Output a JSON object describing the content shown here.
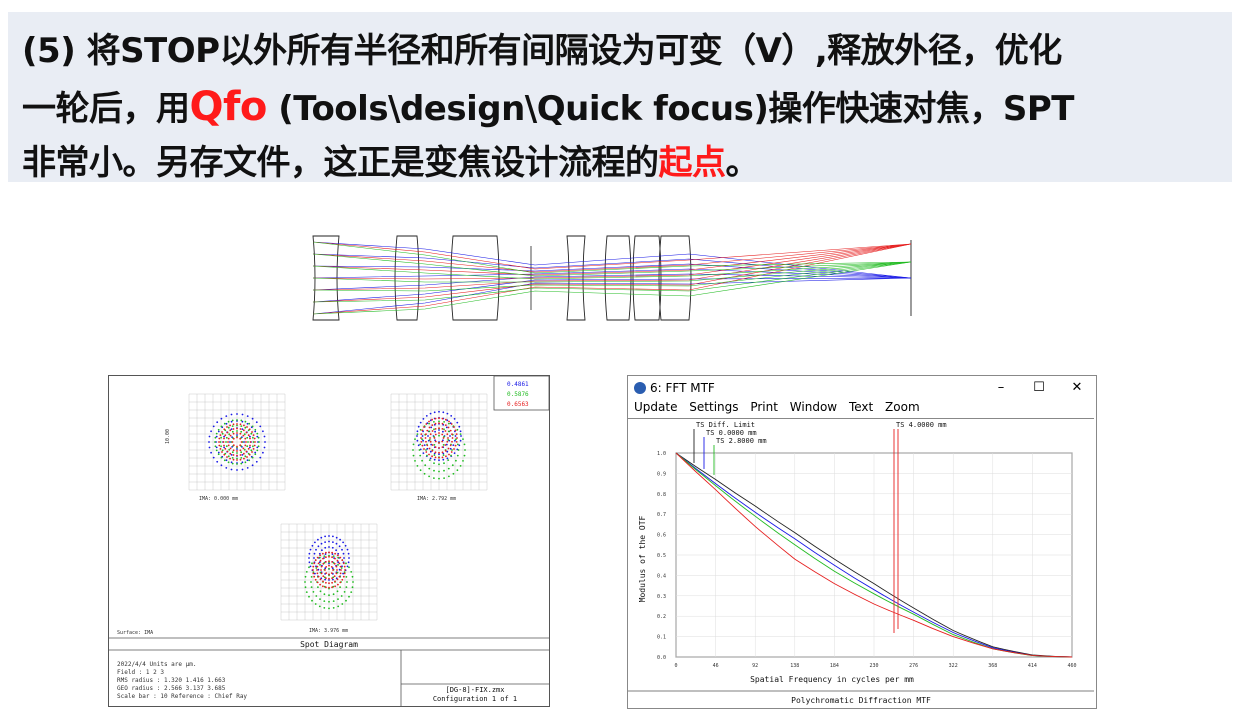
{
  "heading": {
    "line1": "(5) 将STOP以外所有半径和所有间隔设为可变（V）,释放外径，优化",
    "line2_pre": "一轮后，用",
    "line2_qfo": "Qfo",
    "line2_post": " (Tools\\design\\Quick focus)操作快速对焦，SPT",
    "line3_pre": "非常小。另存文件，这正是变焦设计流程的",
    "line3_red": "起点",
    "line3_post": "。"
  },
  "spot_diagram": {
    "legend": [
      "0.4861",
      "0.5876",
      "0.6563"
    ],
    "legend_colors": [
      "#1a1ae6",
      "#22bb22",
      "#e62020"
    ],
    "ima_labels": [
      "IMA: 0.000 mm",
      "IMA: 2.792 mm",
      "IMA: 3.976 mm"
    ],
    "axis_mark": "10.00",
    "surface": "Surface: IMA",
    "title": "Spot Diagram",
    "info": [
      "2022/4/4  Units are µm.",
      "Field     :           1         2         3",
      "RMS radius :      1.320     1.416     1.663",
      "GEO radius :      2.566     3.137     3.685",
      "Scale bar  : 10          Reference  : Chief Ray"
    ],
    "file": "[DG-8]-FIX.zmx",
    "config": "Configuration 1 of 1"
  },
  "mtf_window": {
    "title": "6: FFT MTF",
    "controls": {
      "minimize": "–",
      "maximize": "☐",
      "close": "✕"
    },
    "menu": [
      "Update",
      "Settings",
      "Print",
      "Window",
      "Text",
      "Zoom"
    ],
    "legend": [
      "TS Diff. Limit",
      "TS 0.0000 mm",
      "TS 2.8000 mm",
      "TS 4.0000 mm"
    ],
    "xlabel": "Spatial Frequency in cycles per mm",
    "ylabel": "Modulus of the OTF",
    "footer": "Polychromatic Diffraction MTF"
  },
  "chart_data": {
    "type": "line",
    "title": "Polychromatic Diffraction MTF",
    "xlabel": "Spatial Frequency in cycles per mm",
    "ylabel": "Modulus of the OTF",
    "xlim": [
      0,
      460
    ],
    "ylim": [
      0,
      1
    ],
    "xticks": [
      "0",
      "46",
      "92",
      "138",
      "184",
      "230",
      "276",
      "322",
      "368",
      "414",
      "460"
    ],
    "yticks": [
      "0.0",
      "0.1",
      "0.2",
      "0.3",
      "0.4",
      "0.5",
      "0.6",
      "0.7",
      "0.8",
      "0.9",
      "1.0"
    ],
    "series": [
      {
        "name": "TS Diff. Limit",
        "color": "#222222",
        "x": [
          0,
          46,
          92,
          138,
          184,
          230,
          276,
          322,
          368,
          414,
          460
        ],
        "y": [
          1.0,
          0.87,
          0.74,
          0.61,
          0.48,
          0.36,
          0.24,
          0.13,
          0.05,
          0.01,
          0.0
        ]
      },
      {
        "name": "TS 0.0000 mm",
        "color": "#1a1ae6",
        "x": [
          0,
          46,
          92,
          138,
          184,
          230,
          276,
          322,
          368,
          414,
          460
        ],
        "y": [
          1.0,
          0.85,
          0.71,
          0.58,
          0.45,
          0.33,
          0.22,
          0.12,
          0.045,
          0.008,
          0.0
        ]
      },
      {
        "name": "TS 2.8000 mm",
        "color": "#22bb22",
        "x": [
          0,
          46,
          92,
          138,
          184,
          230,
          276,
          322,
          368,
          414,
          460
        ],
        "y": [
          1.0,
          0.84,
          0.69,
          0.55,
          0.42,
          0.31,
          0.21,
          0.11,
          0.04,
          0.007,
          0.0
        ]
      },
      {
        "name": "TS 4.0000 mm",
        "color": "#e62020",
        "x": [
          0,
          46,
          92,
          138,
          184,
          230,
          276,
          322,
          368,
          414,
          460
        ],
        "y": [
          1.0,
          0.82,
          0.64,
          0.48,
          0.36,
          0.26,
          0.18,
          0.1,
          0.04,
          0.008,
          0.0
        ]
      }
    ]
  }
}
